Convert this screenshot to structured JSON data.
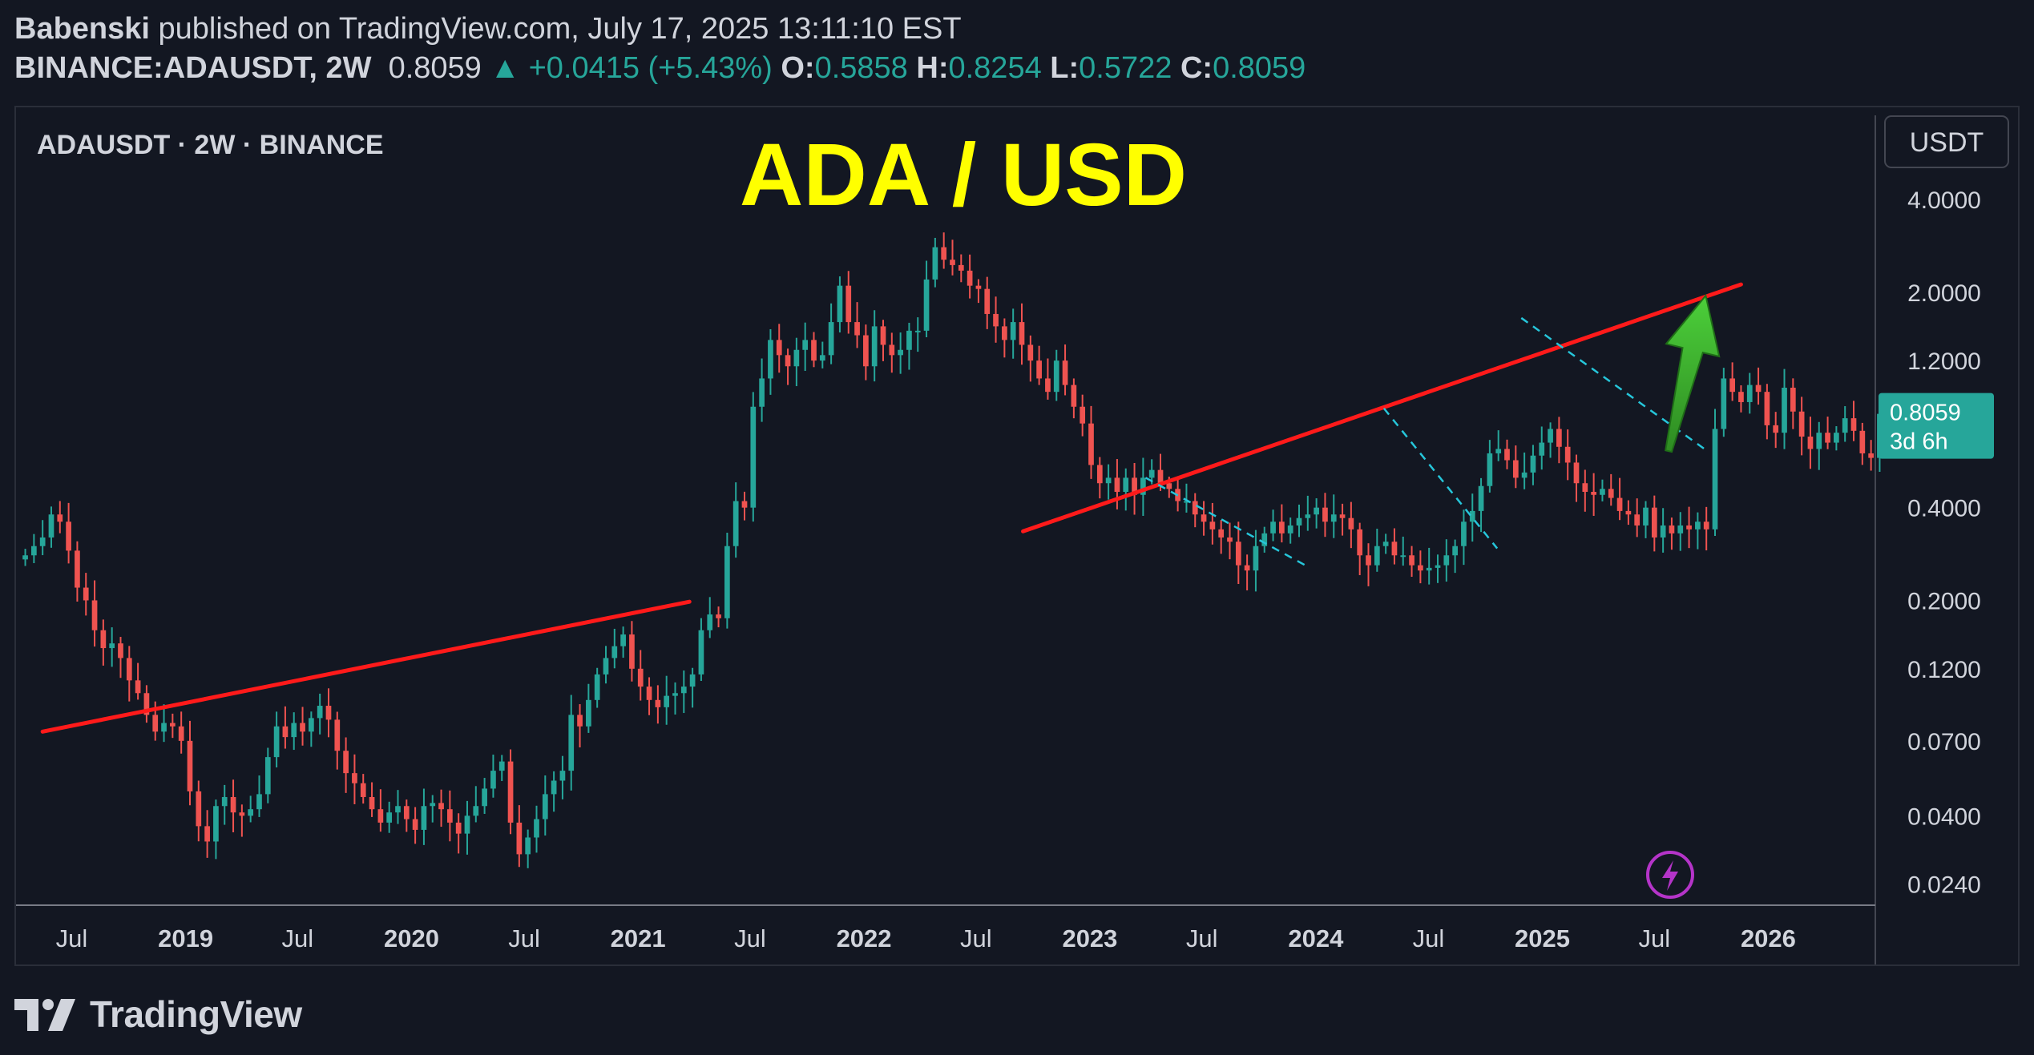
{
  "header": {
    "author": "Babenski",
    "published_text": "published on TradingView.com, July 17, 2025 13:11:10 EST",
    "symbol": "BINANCE:ADAUSDT, 2W",
    "last": "0.8059",
    "change": "+0.0415 (+5.43%)",
    "o_label": "O:",
    "o": "0.5858",
    "h_label": "H:",
    "h": "0.8254",
    "l_label": "L:",
    "l": "0.5722",
    "c_label": "C:",
    "c": "0.8059"
  },
  "footer": {
    "brand": "TradingView"
  },
  "colors": {
    "background": "#131722",
    "up": "#26a69a",
    "down": "#ef5350",
    "trend": "#ff1a1a",
    "dashed": "#26c6da",
    "title": "#ffff00",
    "arrow": "#3cb52d"
  },
  "chart_data": {
    "type": "candlestick",
    "legend": "ADAUSDT · 2W · BINANCE",
    "title": "ADA / USD",
    "y_scale": "log",
    "ylim": [
      0.0205,
      7.5
    ],
    "y_ticks": [
      {
        "value": 4.0,
        "label": "4.0000"
      },
      {
        "value": 2.0,
        "label": "2.0000"
      },
      {
        "value": 1.2,
        "label": "1.2000"
      },
      {
        "value": 0.4,
        "label": "0.4000"
      },
      {
        "value": 0.2,
        "label": "0.2000"
      },
      {
        "value": 0.12,
        "label": "0.1200"
      },
      {
        "value": 0.07,
        "label": "0.0700"
      },
      {
        "value": 0.04,
        "label": "0.0400"
      },
      {
        "value": 0.024,
        "label": "0.0240"
      }
    ],
    "x_range": [
      "2018-04-15",
      "2026-06-10"
    ],
    "x_ticks": [
      {
        "date": "2018-07-01",
        "label": "Jul",
        "bold": false
      },
      {
        "date": "2019-01-01",
        "label": "2019",
        "bold": true
      },
      {
        "date": "2019-07-01",
        "label": "Jul",
        "bold": false
      },
      {
        "date": "2020-01-01",
        "label": "2020",
        "bold": true
      },
      {
        "date": "2020-07-01",
        "label": "Jul",
        "bold": false
      },
      {
        "date": "2021-01-01",
        "label": "2021",
        "bold": true
      },
      {
        "date": "2021-07-01",
        "label": "Jul",
        "bold": false
      },
      {
        "date": "2022-01-01",
        "label": "2022",
        "bold": true
      },
      {
        "date": "2022-07-01",
        "label": "Jul",
        "bold": false
      },
      {
        "date": "2023-01-01",
        "label": "2023",
        "bold": true
      },
      {
        "date": "2023-07-01",
        "label": "Jul",
        "bold": false
      },
      {
        "date": "2024-01-01",
        "label": "2024",
        "bold": true
      },
      {
        "date": "2024-07-01",
        "label": "Jul",
        "bold": false
      },
      {
        "date": "2025-01-01",
        "label": "2025",
        "bold": true
      },
      {
        "date": "2025-07-01",
        "label": "Jul",
        "bold": false
      },
      {
        "date": "2026-01-01",
        "label": "2026",
        "bold": true
      }
    ],
    "currency_button": "USDT",
    "price_label": "0.8059",
    "countdown_label": "3d 6h",
    "candles_start": "2018-04-17",
    "candle_interval_days": 14,
    "closes": [
      0.28,
      0.3,
      0.32,
      0.38,
      0.36,
      0.29,
      0.22,
      0.2,
      0.16,
      0.14,
      0.145,
      0.13,
      0.11,
      0.1,
      0.085,
      0.075,
      0.08,
      0.078,
      0.07,
      0.048,
      0.037,
      0.033,
      0.043,
      0.046,
      0.041,
      0.04,
      0.042,
      0.047,
      0.062,
      0.078,
      0.072,
      0.08,
      0.075,
      0.083,
      0.091,
      0.082,
      0.065,
      0.055,
      0.051,
      0.046,
      0.042,
      0.038,
      0.041,
      0.043,
      0.039,
      0.036,
      0.043,
      0.044,
      0.042,
      0.038,
      0.035,
      0.04,
      0.043,
      0.049,
      0.056,
      0.06,
      0.038,
      0.03,
      0.034,
      0.039,
      0.047,
      0.052,
      0.056,
      0.085,
      0.078,
      0.095,
      0.115,
      0.13,
      0.142,
      0.155,
      0.12,
      0.105,
      0.095,
      0.09,
      0.098,
      0.1,
      0.105,
      0.115,
      0.16,
      0.18,
      0.175,
      0.3,
      0.42,
      0.4,
      0.85,
      1.05,
      1.4,
      1.25,
      1.15,
      1.3,
      1.4,
      1.2,
      1.25,
      1.6,
      2.1,
      1.6,
      1.45,
      1.15,
      1.55,
      1.35,
      1.25,
      1.3,
      1.5,
      1.5,
      2.2,
      2.8,
      2.55,
      2.45,
      2.35,
      2.1,
      2.05,
      1.7,
      1.55,
      1.4,
      1.6,
      1.35,
      1.2,
      1.05,
      0.95,
      1.2,
      1.0,
      0.85,
      0.75,
      0.55,
      0.48,
      0.5,
      0.45,
      0.5,
      0.44,
      0.5,
      0.53,
      0.48,
      0.46,
      0.42,
      0.42,
      0.38,
      0.36,
      0.34,
      0.32,
      0.31,
      0.26,
      0.25,
      0.3,
      0.33,
      0.36,
      0.33,
      0.35,
      0.37,
      0.38,
      0.4,
      0.36,
      0.38,
      0.37,
      0.34,
      0.28,
      0.26,
      0.3,
      0.31,
      0.28,
      0.28,
      0.26,
      0.25,
      0.255,
      0.26,
      0.28,
      0.3,
      0.36,
      0.39,
      0.47,
      0.6,
      0.62,
      0.57,
      0.5,
      0.52,
      0.59,
      0.65,
      0.72,
      0.63,
      0.56,
      0.48,
      0.45,
      0.44,
      0.46,
      0.43,
      0.39,
      0.38,
      0.35,
      0.4,
      0.32,
      0.35,
      0.33,
      0.35,
      0.34,
      0.36,
      0.34,
      0.72,
      1.05,
      0.95,
      0.88,
      1.0,
      0.95,
      0.74,
      0.7,
      0.98,
      0.82,
      0.68,
      0.62,
      0.7,
      0.65,
      0.7,
      0.78,
      0.71,
      0.6,
      0.58,
      0.806
    ],
    "trendlines": [
      {
        "from": [
          "2018-05-15",
          0.075
        ],
        "to": [
          "2021-03-25",
          0.198
        ]
      },
      {
        "from": [
          "2022-09-15",
          0.335
        ],
        "to": [
          "2025-11-18",
          2.12
        ]
      }
    ],
    "dashed_lines": [
      {
        "from": [
          "2023-04-01",
          0.5
        ],
        "to": [
          "2023-12-15",
          0.26
        ]
      },
      {
        "from": [
          "2024-04-20",
          0.84
        ],
        "to": [
          "2024-10-20",
          0.295
        ]
      },
      {
        "from": [
          "2024-11-28",
          1.65
        ],
        "to": [
          "2025-09-20",
          0.62
        ]
      }
    ],
    "arrow": {
      "from": [
        "2025-07-24",
        0.61
      ],
      "to": [
        "2025-09-22",
        1.95
      ]
    }
  }
}
